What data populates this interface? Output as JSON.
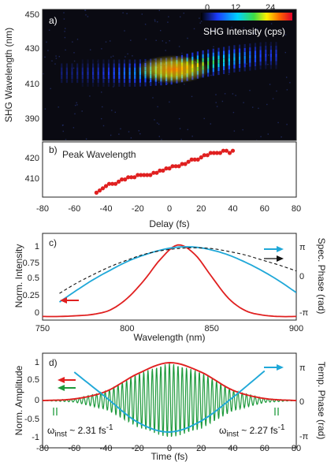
{
  "chart_data": [
    {
      "panel": "a)",
      "type": "heatmap",
      "xlabel": "",
      "ylabel": "SHG Wavelength (nm)",
      "ylim": [
        378,
        452
      ],
      "yticks": [
        "450",
        "430",
        "410",
        "390"
      ],
      "colorbar": {
        "label": "SHG Intensity (cps)",
        "ticks": [
          "0",
          "12",
          "24"
        ],
        "range": [
          0,
          30
        ]
      },
      "data": [
        {
          "delay": -60,
          "center_nm": 416,
          "intensity": 2
        },
        {
          "delay": -40,
          "center_nm": 416,
          "intensity": 4
        },
        {
          "delay": -20,
          "center_nm": 416,
          "intensity": 9
        },
        {
          "delay": 0,
          "center_nm": 417,
          "intensity": 18
        },
        {
          "delay": 10,
          "center_nm": 419,
          "intensity": 24
        },
        {
          "delay": 20,
          "center_nm": 421,
          "intensity": 20
        },
        {
          "delay": 40,
          "center_nm": 424,
          "intensity": 11
        },
        {
          "delay": 60,
          "center_nm": 426,
          "intensity": 4
        }
      ]
    },
    {
      "panel": "b)",
      "type": "scatter",
      "legend": "Peak Wavelength",
      "xlabel": "Delay (fs)",
      "ylabel": "",
      "xlim": [
        -80,
        80
      ],
      "ylim": [
        403,
        428
      ],
      "xticks": [
        "-80",
        "-60",
        "-40",
        "-20",
        "0",
        "20",
        "40",
        "60",
        "80"
      ],
      "yticks": [
        "420",
        "410"
      ],
      "series": [
        {
          "color": "#e02020",
          "x": [
            -46,
            -44,
            -42,
            -40,
            -38,
            -36,
            -34,
            -32,
            -30,
            -28,
            -26,
            -24,
            -22,
            -20,
            -18,
            -16,
            -14,
            -12,
            -10,
            -8,
            -6,
            -4,
            -2,
            0,
            2,
            4,
            6,
            8,
            10,
            12,
            14,
            16,
            18,
            20,
            22,
            24,
            26,
            28,
            30,
            32,
            34,
            36,
            38,
            40
          ],
          "y": [
            405,
            406,
            407,
            408,
            409,
            409,
            409,
            410,
            411,
            411,
            412,
            412,
            412,
            413,
            413,
            413,
            413,
            413,
            414,
            414,
            415,
            415,
            416,
            416,
            417,
            417,
            417,
            418,
            418,
            419,
            420,
            420,
            420,
            421,
            422,
            422,
            423,
            423,
            423,
            423,
            424,
            424,
            423,
            424
          ]
        }
      ]
    },
    {
      "panel": "c)",
      "type": "line",
      "xlabel": "Wavelength (nm)",
      "ylabel": "Norm. Intensity",
      "y2label": "Spec. Phase (rad)",
      "xlim": [
        750,
        900
      ],
      "ylim": [
        -0.05,
        1.15
      ],
      "xticks": [
        "750",
        "800",
        "850",
        "900"
      ],
      "yticks": [
        "0",
        "0.25",
        "0.5",
        "0.75",
        "1"
      ],
      "y2ticks": [
        "π",
        "0",
        "-π"
      ],
      "series": [
        {
          "style": "red-solid",
          "x": [
            750,
            760,
            770,
            780,
            790,
            800,
            810,
            820,
            830,
            840,
            850,
            860,
            870,
            880,
            890,
            900
          ],
          "y": [
            0.0,
            0.0,
            0.01,
            0.03,
            0.09,
            0.25,
            0.5,
            0.8,
            0.99,
            0.86,
            0.55,
            0.25,
            0.08,
            0.02,
            0.0,
            0.0
          ]
        },
        {
          "style": "blue-solid",
          "x": [
            760,
            770,
            780,
            790,
            800,
            810,
            820,
            830,
            840,
            850,
            860,
            870,
            880,
            890,
            900
          ],
          "y": [
            0.2,
            0.36,
            0.51,
            0.64,
            0.76,
            0.85,
            0.92,
            0.96,
            0.96,
            0.92,
            0.85,
            0.75,
            0.63,
            0.49,
            0.33
          ]
        },
        {
          "style": "black-dashed",
          "x": [
            760,
            770,
            780,
            790,
            800,
            810,
            820,
            830,
            840,
            850,
            860,
            870,
            880,
            890,
            900
          ],
          "y": [
            0.32,
            0.46,
            0.58,
            0.69,
            0.78,
            0.86,
            0.91,
            0.94,
            0.95,
            0.94,
            0.9,
            0.85,
            0.78,
            0.71,
            0.63
          ]
        }
      ]
    },
    {
      "panel": "d)",
      "type": "line",
      "xlabel": "Time (fs)",
      "ylabel": "Norm. Amplitude",
      "y2label": "Temp. Phase (rad)",
      "xlim": [
        -80,
        80
      ],
      "ylim": [
        -1.2,
        1.2
      ],
      "xticks": [
        "-80",
        "-60",
        "-40",
        "-20",
        "0",
        "20",
        "40",
        "60",
        "80"
      ],
      "yticks": [
        "1",
        "0.5",
        "0",
        "-0.5",
        "-1"
      ],
      "y2ticks": [
        "π",
        "0",
        "-π"
      ],
      "annotations": [
        "ω<sub>inst</sub> ~ 2.31 fs<sup>-1</sup>",
        "ω<sub>inst</sub> ~ 2.27 fs<sup>-1</sup>"
      ],
      "series": [
        {
          "style": "red-envelope",
          "x": [
            -80,
            -60,
            -40,
            -20,
            0,
            20,
            40,
            60,
            80
          ],
          "y": [
            0.0,
            0.04,
            0.23,
            0.68,
            0.96,
            0.72,
            0.26,
            0.05,
            0.0
          ]
        },
        {
          "style": "blue-phase",
          "x": [
            -60,
            -40,
            -20,
            0,
            20,
            40,
            60
          ],
          "y": [
            0.72,
            0.08,
            -0.55,
            -0.8,
            -0.52,
            0.08,
            0.75
          ]
        }
      ]
    }
  ]
}
